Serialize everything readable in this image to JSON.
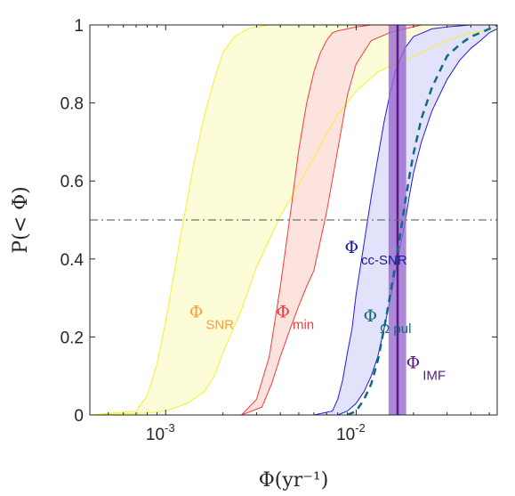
{
  "chart_data": {
    "type": "area",
    "xscale": "log",
    "xlim": [
      0.0004,
      0.055
    ],
    "ylim": [
      0,
      1
    ],
    "xlabel": "Φ(yr⁻¹)",
    "ylabel": "P(< Φ)",
    "yticks": [
      "0",
      "0.2",
      "0.4",
      "0.6",
      "0.8",
      "1"
    ],
    "xticks": [
      {
        "value": 0.001,
        "base": "10",
        "exp": "-3"
      },
      {
        "value": 0.01,
        "base": "10",
        "exp": "-2"
      }
    ],
    "grid": false,
    "reference_line": {
      "y": 0.5,
      "style": "dash-dot",
      "color": "#707070"
    },
    "colors": {
      "snr": "#f2f230",
      "snr_fill": "#fcfcd9",
      "snr_label": "#f9a040",
      "min": "#f03c3c",
      "min_fill": "#fde3de",
      "min_label": "#f03c3c",
      "ccsnr": "#1c1ce8",
      "ccsnr_fill": "#e2e2fb",
      "ccsnr_label": "#1a1a9a",
      "pul": "#116a80",
      "imf": "#5a1a80",
      "imf_band": "#9a6ad0"
    },
    "series": [
      {
        "key": "snr",
        "lower": {
          "x": [
            0.0004,
            0.0008,
            0.001,
            0.0013,
            0.0016,
            0.0018,
            0.002,
            0.0025,
            0.003,
            0.004,
            0.005,
            0.006,
            0.007,
            0.008,
            0.01,
            0.013,
            0.02,
            0.03,
            0.04,
            0.055
          ],
          "y": [
            0.0,
            0.005,
            0.01,
            0.03,
            0.06,
            0.1,
            0.16,
            0.27,
            0.38,
            0.51,
            0.59,
            0.66,
            0.72,
            0.77,
            0.83,
            0.88,
            0.92,
            0.96,
            0.98,
            0.99
          ]
        },
        "upper": {
          "x": [
            0.0004,
            0.0007,
            0.0008,
            0.0009,
            0.001,
            0.0012,
            0.0014,
            0.0016,
            0.0018,
            0.002,
            0.0023,
            0.0027,
            0.003,
            0.0035,
            0.055
          ],
          "y": [
            0.0,
            0.01,
            0.05,
            0.13,
            0.24,
            0.46,
            0.64,
            0.77,
            0.86,
            0.93,
            0.97,
            0.99,
            0.995,
            1.0,
            1.0
          ]
        }
      },
      {
        "key": "min",
        "lower": {
          "x": [
            0.0025,
            0.0032,
            0.0036,
            0.004,
            0.0045,
            0.005,
            0.0055,
            0.006,
            0.007,
            0.008,
            0.009,
            0.01,
            0.012,
            0.015,
            0.018,
            0.022,
            0.03,
            0.055
          ],
          "y": [
            0.0,
            0.02,
            0.08,
            0.15,
            0.22,
            0.28,
            0.33,
            0.37,
            0.52,
            0.68,
            0.82,
            0.9,
            0.96,
            0.98,
            0.99,
            1.0,
            1.0,
            1.0
          ]
        },
        "upper": {
          "x": [
            0.0025,
            0.003,
            0.0035,
            0.004,
            0.0045,
            0.005,
            0.0055,
            0.006,
            0.0065,
            0.007,
            0.0075,
            0.008,
            0.009,
            0.01,
            0.012,
            0.015,
            0.055
          ],
          "y": [
            0.0,
            0.04,
            0.15,
            0.33,
            0.51,
            0.68,
            0.8,
            0.88,
            0.93,
            0.96,
            0.98,
            0.985,
            0.99,
            0.995,
            1.0,
            1.0,
            1.0
          ]
        }
      },
      {
        "key": "ccsnr",
        "lower": {
          "x": [
            0.006,
            0.008,
            0.009,
            0.01,
            0.011,
            0.012,
            0.013,
            0.014,
            0.015,
            0.016,
            0.017,
            0.018,
            0.019,
            0.02,
            0.022,
            0.025,
            0.028,
            0.03,
            0.035,
            0.04,
            0.045,
            0.05,
            0.055
          ],
          "y": [
            0.0,
            0.0,
            0.01,
            0.03,
            0.06,
            0.1,
            0.15,
            0.22,
            0.29,
            0.36,
            0.43,
            0.49,
            0.56,
            0.62,
            0.7,
            0.78,
            0.83,
            0.86,
            0.91,
            0.94,
            0.96,
            0.98,
            0.99
          ]
        },
        "upper": {
          "x": [
            0.006,
            0.0075,
            0.008,
            0.0085,
            0.009,
            0.0095,
            0.01,
            0.011,
            0.012,
            0.013,
            0.014,
            0.015,
            0.016,
            0.018,
            0.02,
            0.025,
            0.03,
            0.04,
            0.055
          ],
          "y": [
            0.0,
            0.01,
            0.04,
            0.09,
            0.16,
            0.22,
            0.31,
            0.44,
            0.56,
            0.66,
            0.75,
            0.82,
            0.88,
            0.94,
            0.97,
            0.99,
            0.995,
            1.0,
            1.0
          ]
        }
      },
      {
        "key": "pul",
        "median": {
          "x": [
            0.009,
            0.01,
            0.011,
            0.012,
            0.013,
            0.014,
            0.015,
            0.016,
            0.017,
            0.018,
            0.019,
            0.02,
            0.022,
            0.025,
            0.028,
            0.03,
            0.035,
            0.04,
            0.045,
            0.05,
            0.055
          ],
          "y": [
            0.0,
            0.01,
            0.04,
            0.08,
            0.14,
            0.22,
            0.3,
            0.38,
            0.46,
            0.54,
            0.61,
            0.67,
            0.76,
            0.84,
            0.89,
            0.92,
            0.95,
            0.97,
            0.98,
            0.99,
            1.0
          ]
        }
      }
    ],
    "vertical_band": {
      "xmin": 0.0148,
      "xmax": 0.0183,
      "line_x": 0.0165
    },
    "annotations": [
      {
        "sym": "Φ",
        "sub": "SNR",
        "x": 0.00133,
        "y": 0.25,
        "color_key": "snr_label"
      },
      {
        "sym": "Φ",
        "sub": "min",
        "x": 0.0038,
        "y": 0.25,
        "color_key": "min_label"
      },
      {
        "sym": "Φ",
        "sub": "cc-SNR",
        "x": 0.0087,
        "y": 0.415,
        "color_key": "ccsnr_label"
      },
      {
        "sym": "Φ",
        "sub": "Ω pul",
        "x": 0.0109,
        "y": 0.24,
        "color_key": "pul"
      },
      {
        "sym": "Φ",
        "sub": "IMF",
        "x": 0.0183,
        "y": 0.12,
        "color_key": "imf"
      }
    ]
  }
}
